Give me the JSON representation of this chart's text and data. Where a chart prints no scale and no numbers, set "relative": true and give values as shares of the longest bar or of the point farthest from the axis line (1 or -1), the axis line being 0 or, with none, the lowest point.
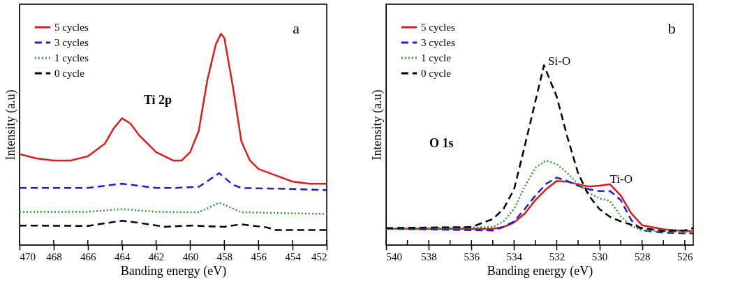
{
  "chart_data": [
    {
      "type": "line",
      "relative": true,
      "xlabel": "Banding energy (eV)",
      "ylabel": "Intensity (a.u)",
      "xlim": [
        470,
        452
      ],
      "xticks": [
        470,
        468,
        466,
        464,
        462,
        460,
        458,
        456,
        454,
        452
      ],
      "legend": "top left",
      "tick_labels": "x",
      "grid": false,
      "annotations": [
        "a",
        "Ti 2p"
      ],
      "series": [
        {
          "name": "5 cycles",
          "color": "#e31a1c",
          "line_style": "solid",
          "x": [
            470,
            469,
            468,
            467,
            466,
            465,
            464.5,
            464,
            463.5,
            463,
            462,
            461,
            460.5,
            460,
            459.5,
            459,
            458.5,
            458.2,
            458,
            457.5,
            457,
            456.5,
            456,
            455,
            454,
            453,
            452
          ],
          "values": [
            0.43,
            0.41,
            0.4,
            0.4,
            0.42,
            0.48,
            0.55,
            0.6,
            0.575,
            0.52,
            0.44,
            0.4,
            0.4,
            0.44,
            0.54,
            0.78,
            0.95,
            1.0,
            0.98,
            0.75,
            0.49,
            0.4,
            0.36,
            0.33,
            0.3,
            0.29,
            0.29
          ]
        },
        {
          "name": "3 cycles",
          "color": "#1f1fd6",
          "line_style": "dashed",
          "x": [
            470,
            466,
            464,
            462,
            461,
            459.5,
            458.3,
            457.5,
            457,
            454,
            452
          ],
          "values": [
            0.27,
            0.27,
            0.29,
            0.27,
            0.27,
            0.275,
            0.34,
            0.285,
            0.27,
            0.265,
            0.26
          ]
        },
        {
          "name": "1 cycles",
          "color": "#2ca02c",
          "line_style": "dotted",
          "x": [
            470,
            466,
            464,
            462,
            459.5,
            458.3,
            457,
            454,
            452
          ],
          "values": [
            0.157,
            0.157,
            0.17,
            0.157,
            0.155,
            0.2,
            0.155,
            0.15,
            0.147
          ]
        },
        {
          "name": "0 cycle",
          "color": "#000000",
          "line_style": "dashed",
          "x": [
            470,
            466,
            464,
            463,
            461.5,
            460,
            458,
            457,
            455.5,
            455,
            452
          ],
          "values": [
            0.092,
            0.09,
            0.115,
            0.105,
            0.086,
            0.092,
            0.086,
            0.098,
            0.083,
            0.071,
            0.071
          ]
        }
      ]
    },
    {
      "type": "line",
      "relative": true,
      "xlabel": "Banding energy (eV)",
      "ylabel": "Intensity (a.u)",
      "xlim": [
        540,
        525.6
      ],
      "xticks": [
        540,
        {
          "value": 539,
          "label": null
        },
        538,
        {
          "value": 537,
          "label": null
        },
        536,
        {
          "value": 535,
          "label": null
        },
        534,
        {
          "value": 533,
          "label": null
        },
        532,
        {
          "value": 531,
          "label": null
        },
        530,
        {
          "value": 529,
          "label": null
        },
        528,
        {
          "value": 527,
          "label": null
        },
        526
      ],
      "legend": "top left",
      "tick_labels": "x",
      "grid": false,
      "annotations": [
        "b",
        "O 1s",
        {
          "text": "Si-O",
          "x": 532.6,
          "y": 1.0
        },
        {
          "text": "Ti-O",
          "x": 529.7,
          "y": 0.34
        }
      ],
      "series": [
        {
          "name": "5 cycles",
          "color": "#e31a1c",
          "line_style": "solid",
          "x": [
            540,
            535,
            534.5,
            534,
            533.5,
            533,
            532.5,
            532,
            531.5,
            531,
            530.5,
            530,
            529.5,
            529,
            528.5,
            528,
            527,
            526,
            525.6
          ],
          "values": [
            0.09,
            0.09,
            0.1,
            0.125,
            0.175,
            0.25,
            0.31,
            0.356,
            0.352,
            0.3375,
            0.325,
            0.33,
            0.3375,
            0.275,
            0.175,
            0.11,
            0.0875,
            0.078,
            0.078
          ]
        },
        {
          "name": "3 cycles",
          "color": "#1f1fd6",
          "line_style": "dashed",
          "x": [
            540,
            535,
            534.5,
            534,
            533.5,
            533,
            532.5,
            532,
            531.5,
            531,
            530.5,
            530,
            529.5,
            529,
            528.5,
            528,
            527,
            526,
            525.6
          ],
          "values": [
            0.09,
            0.081,
            0.1,
            0.131,
            0.2,
            0.275,
            0.34,
            0.375,
            0.356,
            0.33,
            0.31,
            0.3,
            0.3,
            0.25,
            0.1375,
            0.081,
            0.069,
            0.065,
            0.065
          ]
        },
        {
          "name": "1 cycle",
          "color": "#2ca02c",
          "line_style": "dotted",
          "x": [
            540,
            535,
            534.5,
            534,
            533.5,
            533,
            532.5,
            532,
            531.5,
            531,
            530.5,
            530,
            529.5,
            529,
            528.5,
            528,
            526,
            525.6
          ],
          "values": [
            0.09,
            0.1,
            0.131,
            0.2,
            0.325,
            0.43,
            0.47,
            0.45,
            0.4,
            0.34,
            0.29,
            0.26,
            0.244,
            0.16,
            0.106,
            0.081,
            0.072,
            0.075
          ]
        },
        {
          "name": "0 cycle",
          "color": "#000000",
          "line_style": "dashed",
          "x": [
            540,
            536,
            535,
            534.5,
            534,
            533.5,
            533,
            532.6,
            532,
            531.5,
            531,
            530.5,
            530,
            529.5,
            529,
            528,
            527,
            526,
            525.6
          ],
          "values": [
            0.094,
            0.1,
            0.144,
            0.2,
            0.31,
            0.55,
            0.8,
            1.0,
            0.825,
            0.6,
            0.4,
            0.275,
            0.2,
            0.156,
            0.131,
            0.094,
            0.078,
            0.081,
            0.094
          ]
        }
      ]
    }
  ]
}
